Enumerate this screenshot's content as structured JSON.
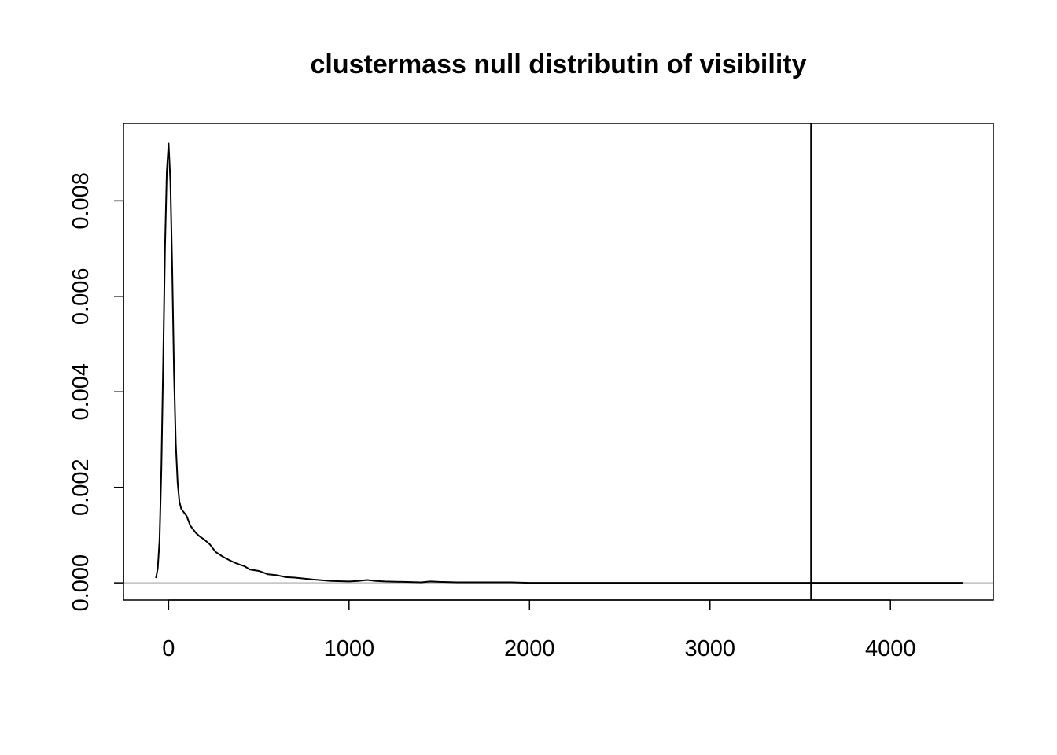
{
  "chart_data": {
    "type": "line",
    "title": "clustermass null distributin of visibility",
    "xlabel": "",
    "ylabel": "",
    "xlim": [
      -250,
      4570
    ],
    "ylim": [
      -0.00036,
      0.00962
    ],
    "x_ticks": [
      0,
      1000,
      2000,
      3000,
      4000
    ],
    "x_tick_labels": [
      "0",
      "1000",
      "2000",
      "3000",
      "4000"
    ],
    "y_ticks": [
      0.0,
      0.002,
      0.004,
      0.006,
      0.008
    ],
    "y_tick_labels": [
      "0.000",
      "0.002",
      "0.004",
      "0.006",
      "0.008"
    ],
    "grid": false,
    "legend": "none",
    "colors": {
      "line": "#000000",
      "zero_line": "#bebebe",
      "vline": "#000000",
      "frame": "#000000"
    },
    "zero_line": {
      "y": 0,
      "from_x": -250,
      "to_x": 4570
    },
    "vline": {
      "x": 3560
    },
    "series": [
      {
        "x": [
          -70,
          -60,
          -50,
          -40,
          -30,
          -20,
          -10,
          0,
          10,
          20,
          30,
          40,
          50,
          60,
          70,
          80,
          100,
          120,
          150,
          170,
          200,
          230,
          260,
          300,
          340,
          380,
          420,
          450,
          500,
          550,
          600,
          650,
          700,
          800,
          900,
          1000,
          1050,
          1100,
          1150,
          1200,
          1300,
          1400,
          1450,
          1500,
          1600,
          1700,
          1800,
          1900,
          2000,
          2500,
          3000,
          3500,
          4000,
          4400
        ],
        "y": [
          0.0001,
          0.0003,
          0.0009,
          0.0024,
          0.0046,
          0.007,
          0.0086,
          0.0092,
          0.0084,
          0.0066,
          0.0044,
          0.0029,
          0.0021,
          0.0017,
          0.00155,
          0.0015,
          0.0014,
          0.0012,
          0.00105,
          0.00098,
          0.0009,
          0.0008,
          0.00065,
          0.00055,
          0.00047,
          0.0004,
          0.00035,
          0.00028,
          0.00025,
          0.00018,
          0.00016,
          0.00012,
          0.00011,
          7e-05,
          4e-05,
          3e-05,
          4e-05,
          6e-05,
          4e-05,
          3e-05,
          2e-05,
          1e-05,
          3e-05,
          2e-05,
          1e-05,
          1e-05,
          1e-05,
          1e-05,
          0.0,
          0.0,
          0.0,
          0.0,
          0.0,
          0.0
        ]
      }
    ]
  }
}
